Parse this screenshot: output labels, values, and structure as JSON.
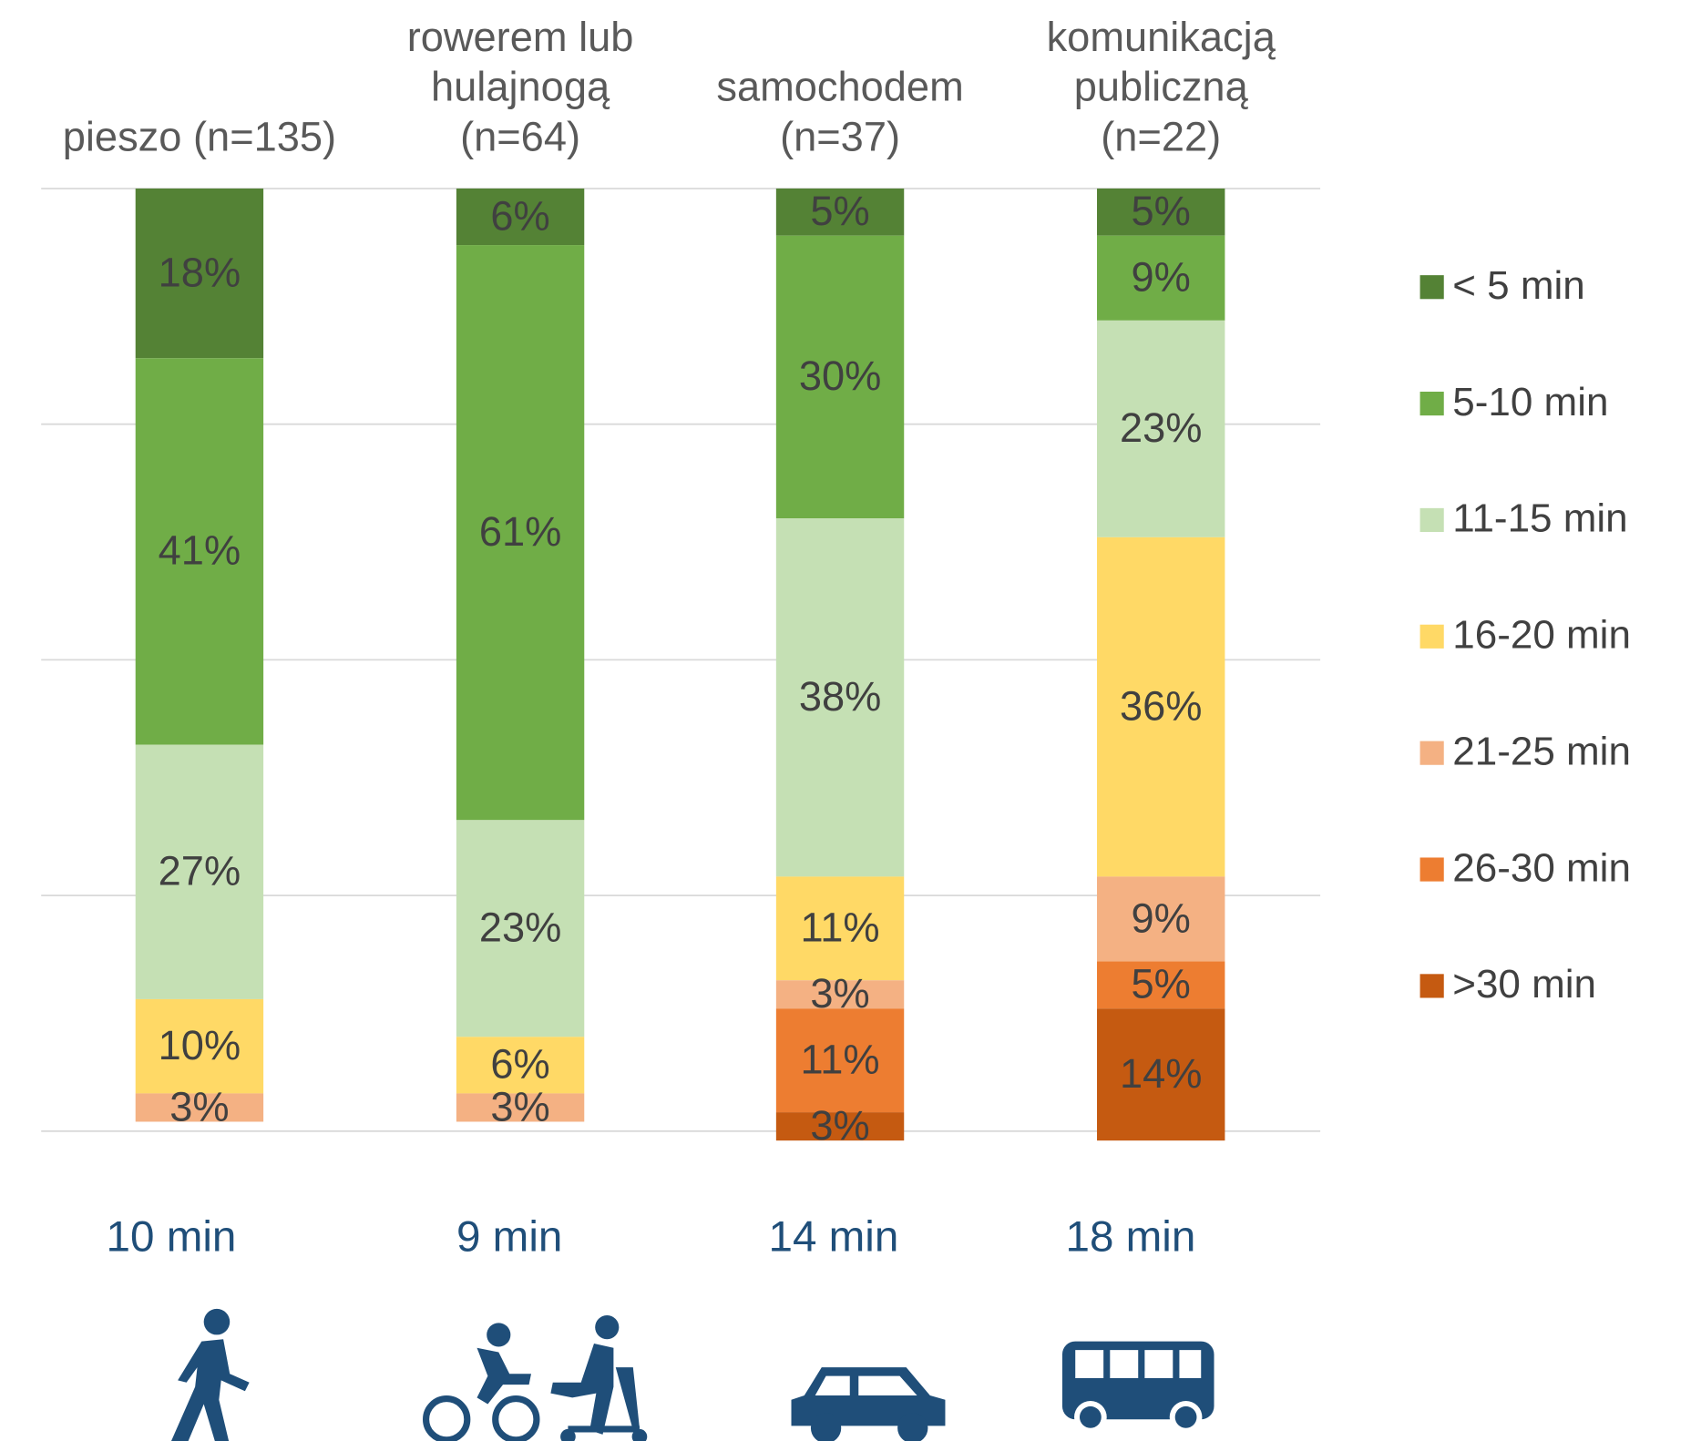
{
  "chart_data": {
    "type": "stacked_bar",
    "categories": [
      "pieszo (n=135)",
      "rowerem lub\nhulajnogą\n(n=64)",
      "samochodem\n(n=37)",
      "komunikacją\npubliczną\n(n=22)"
    ],
    "annotations": [
      "10 min",
      "9 min",
      "14 min",
      "18 min"
    ],
    "series": [
      {
        "name": "< 5 min",
        "color": "#548235",
        "values": [
          18,
          6,
          5,
          5
        ]
      },
      {
        "name": "5-10 min",
        "color": "#70ad47",
        "values": [
          41,
          61,
          30,
          9
        ]
      },
      {
        "name": "11-15 min",
        "color": "#c5e0b4",
        "values": [
          27,
          23,
          38,
          23
        ]
      },
      {
        "name": "16-20 min",
        "color": "#ffd966",
        "values": [
          10,
          6,
          11,
          36
        ]
      },
      {
        "name": "21-25 min",
        "color": "#f4b183",
        "values": [
          3,
          3,
          3,
          9
        ]
      },
      {
        "name": "26-30 min",
        "color": "#ed7d31",
        "values": [
          null,
          null,
          11,
          5
        ]
      },
      {
        "name": ">30 min",
        "color": "#c55a11",
        "values": [
          null,
          null,
          3,
          14
        ]
      }
    ],
    "value_labels": [
      [
        "18%",
        "6%",
        "5%",
        "5%"
      ],
      [
        "41%",
        "61%",
        "30%",
        "9%"
      ],
      [
        "27%",
        "23%",
        "38%",
        "23%"
      ],
      [
        "10%",
        "6%",
        "11%",
        "36%"
      ],
      [
        "3%",
        "3%",
        "3%",
        "9%"
      ],
      [
        null,
        null,
        "11%",
        "5%"
      ],
      [
        null,
        null,
        "3%",
        "14%"
      ]
    ],
    "ylim": [
      0,
      100
    ],
    "yticks": [
      0,
      25,
      50,
      75,
      100
    ],
    "grid": true,
    "legend": "right"
  }
}
